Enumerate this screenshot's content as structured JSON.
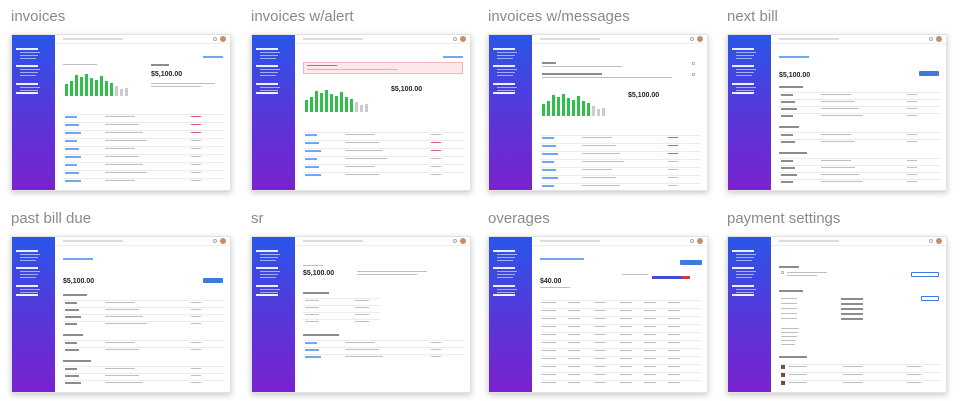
{
  "cards": [
    {
      "title": "invoices"
    },
    {
      "title": "invoices w/alert"
    },
    {
      "title": "invoices w/messages"
    },
    {
      "title": "next bill"
    },
    {
      "title": "past bill due"
    },
    {
      "title": "sr"
    },
    {
      "title": "overages"
    },
    {
      "title": "payment settings"
    }
  ],
  "colors": {
    "sidebar_top": "#2a56e8",
    "sidebar_bottom": "#7a22cf",
    "bar_green": "#2fbf4a",
    "bar_grey": "#cccccc",
    "link": "#6ea8f0",
    "due_red": "#d23a3a",
    "button_blue": "#3e7bdf"
  }
}
